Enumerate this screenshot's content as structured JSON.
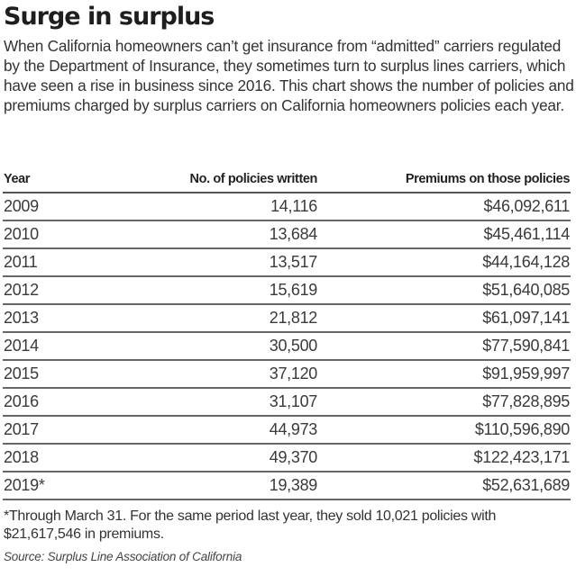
{
  "title": "Surge in surplus",
  "intro": "When California homeowners can’t get insurance from “admitted” carriers regulated by the Department of Insurance, they sometimes turn to surplus lines carriers, which have seen a rise in business since 2016. This chart shows the number of policies and premiums charged by surplus carriers on California homeowners policies each year.",
  "table": {
    "headers": [
      "Year",
      "No. of policies written",
      "Premiums on those policies"
    ],
    "rows": [
      [
        "2009",
        "14,116",
        "$46,092,611"
      ],
      [
        "2010",
        "13,684",
        "$45,461,114"
      ],
      [
        "2011",
        "13,517",
        "$44,164,128"
      ],
      [
        "2012",
        "15,619",
        "$51,640,085"
      ],
      [
        "2013",
        "21,812",
        "$61,097,141"
      ],
      [
        "2014",
        "30,500",
        "$77,590,841"
      ],
      [
        "2015",
        "37,120",
        "$91,959,997"
      ],
      [
        "2016",
        "31,107",
        "$77,828,895"
      ],
      [
        "2017",
        "44,973",
        "$110,596,890"
      ],
      [
        "2018",
        "49,370",
        "$122,423,171"
      ],
      [
        "2019*",
        "19,389",
        "$52,631,689"
      ]
    ]
  },
  "footnote": "*Through March 31. For the same period last year, they sold 10,021 policies with $21,617,546 in premiums.",
  "source": "Source: Surplus Line Association of California",
  "chart_data": {
    "type": "table",
    "title": "Surge in surplus",
    "columns": [
      "Year",
      "No. of policies written",
      "Premiums on those policies"
    ],
    "categories": [
      "2009",
      "2010",
      "2011",
      "2012",
      "2013",
      "2014",
      "2015",
      "2016",
      "2017",
      "2018",
      "2019*"
    ],
    "series": [
      {
        "name": "No. of policies written",
        "values": [
          14116,
          13684,
          13517,
          15619,
          21812,
          30500,
          37120,
          31107,
          44973,
          49370,
          19389
        ]
      },
      {
        "name": "Premiums on those policies",
        "values": [
          46092611,
          45461114,
          44164128,
          51640085,
          61097141,
          77590841,
          91959997,
          77828895,
          110596890,
          122423171,
          52631689
        ]
      }
    ],
    "annotations": [
      "*Through March 31. For the same period last year, they sold 10,021 policies with $21,617,546 in premiums."
    ],
    "source": "Surplus Line Association of California"
  }
}
